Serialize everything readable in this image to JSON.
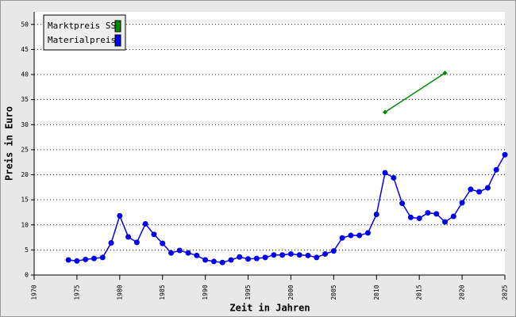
{
  "chart_data": {
    "type": "line",
    "x_label": "Zeit in Jahren",
    "y_label": "Preis in Euro",
    "xlim": [
      1970,
      2025
    ],
    "xticks": [
      1970,
      1975,
      1980,
      1985,
      1990,
      1995,
      2000,
      2005,
      2010,
      2015,
      2020,
      2025
    ],
    "ylim": [
      0,
      52.5
    ],
    "yticks": [
      0,
      5,
      10,
      15,
      20,
      25,
      30,
      35,
      40,
      45,
      50
    ],
    "grid": true,
    "legend": "top-left",
    "series": [
      {
        "name": "Marktpreis SS",
        "color": "#008800",
        "x": [
          2011,
          2018
        ],
        "values": [
          32.5,
          40.3
        ]
      },
      {
        "name": "Materialpreis",
        "color": "#0000ee",
        "x": [
          1974,
          1975,
          1976,
          1977,
          1978,
          1979,
          1980,
          1981,
          1982,
          1983,
          1984,
          1985,
          1986,
          1987,
          1988,
          1989,
          1990,
          1991,
          1992,
          1993,
          1994,
          1995,
          1996,
          1997,
          1998,
          1999,
          2000,
          2001,
          2002,
          2003,
          2004,
          2005,
          2006,
          2007,
          2008,
          2009,
          2010,
          2011,
          2012,
          2013,
          2014,
          2015,
          2016,
          2017,
          2018,
          2019,
          2020,
          2021,
          2022,
          2023,
          2024,
          2025
        ],
        "values": [
          3.0,
          2.8,
          3.1,
          3.3,
          3.5,
          6.4,
          11.8,
          7.6,
          6.5,
          10.2,
          8.1,
          6.3,
          4.4,
          4.9,
          4.4,
          3.9,
          3.0,
          2.7,
          2.5,
          3.0,
          3.6,
          3.2,
          3.3,
          3.5,
          4.0,
          4.0,
          4.2,
          4.0,
          3.9,
          3.5,
          4.2,
          4.8,
          7.4,
          7.9,
          7.9,
          8.4,
          12.1,
          20.4,
          19.4,
          14.3,
          11.5,
          11.3,
          12.4,
          12.2,
          10.6,
          11.7,
          14.4,
          17.1,
          16.6,
          17.4,
          21.0,
          24.0
        ]
      }
    ]
  }
}
